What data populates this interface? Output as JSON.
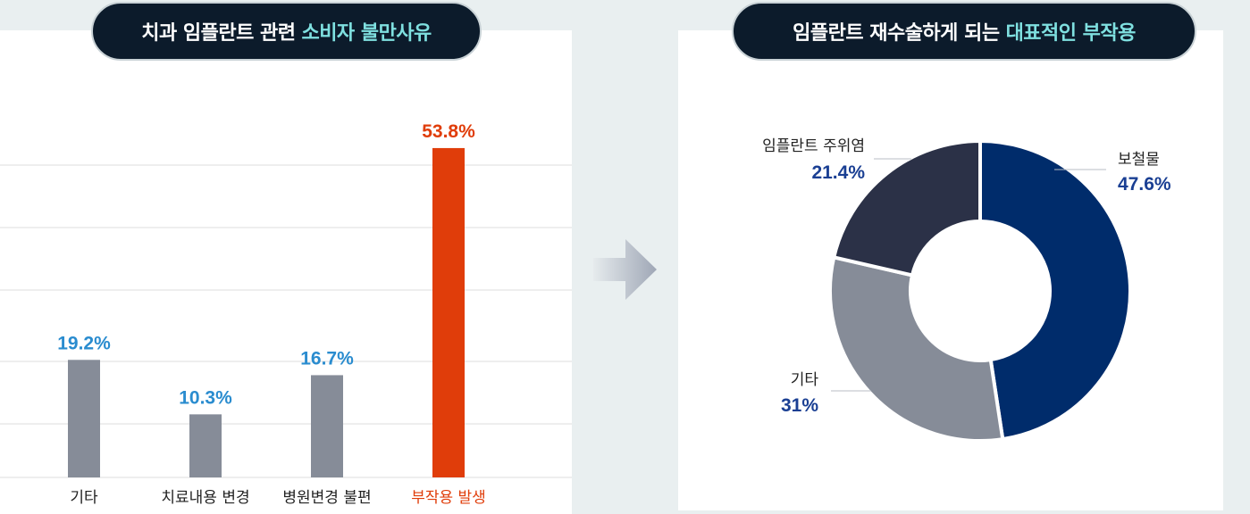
{
  "left_title": {
    "text": "치과 임플란트 관련",
    "highlight": "소비자 불만사유"
  },
  "right_title": {
    "text": "임플란트 재수술하게 되는",
    "highlight": "대표적인 부작용"
  },
  "colors": {
    "bar_default": "#868c98",
    "bar_highlight": "#e03d0a",
    "value_default": "#2a8ccf",
    "value_highlight": "#e03d0a",
    "donut_main": "#002c6b",
    "donut_mid": "#868c98",
    "donut_dark": "#2b3147",
    "donut_value": "#1a3f93"
  },
  "chart_data": [
    {
      "type": "bar",
      "categories": [
        "기타",
        "치료내용 변경",
        "병원변경 불편",
        "부작용 발생"
      ],
      "values": [
        19.2,
        10.3,
        16.7,
        53.8
      ],
      "value_labels": [
        "19.2%",
        "10.3%",
        "16.7%",
        "53.8%"
      ],
      "highlight_index": 3,
      "ylim": [
        0,
        60
      ],
      "grid": true
    },
    {
      "type": "pie",
      "donut": true,
      "labels": [
        "보철물",
        "기타",
        "임플란트 주위염"
      ],
      "values": [
        47.6,
        31,
        21.4
      ],
      "value_labels": [
        "47.6%",
        "31%",
        "21.4%"
      ]
    }
  ]
}
